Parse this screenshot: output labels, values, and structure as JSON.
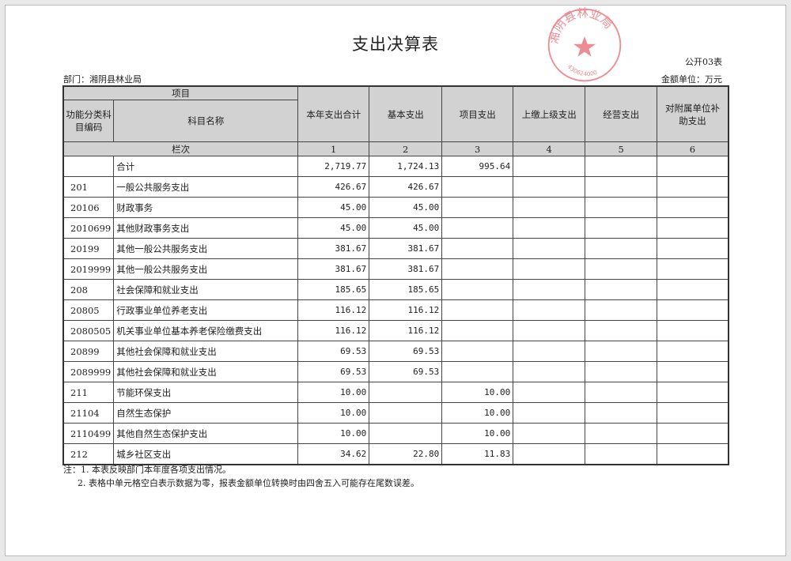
{
  "title": "支出决算表",
  "form_no": "公开03表",
  "department": "部门：湘阴县林业局",
  "unit": "金额单位：万元",
  "headers": {
    "item": "项目",
    "code": "功能分类科目编码",
    "name": "科目名称",
    "total": "本年支出合计",
    "basic": "基本支出",
    "project": "项目支出",
    "upper": "上缴上级支出",
    "business": "经营支出",
    "subsidy": "对附属单位补助支出",
    "col_index": "栏次",
    "col_nums": [
      "1",
      "2",
      "3",
      "4",
      "5",
      "6"
    ]
  },
  "rows": [
    {
      "code": "",
      "name": "合计",
      "total": "2,719.77",
      "basic": "1,724.13",
      "project": "995.64"
    },
    {
      "code": "201",
      "name": "一般公共服务支出",
      "total": "426.67",
      "basic": "426.67",
      "project": ""
    },
    {
      "code": "20106",
      "name": "财政事务",
      "total": "45.00",
      "basic": "45.00",
      "project": ""
    },
    {
      "code": "2010699",
      "name": "其他财政事务支出",
      "total": "45.00",
      "basic": "45.00",
      "project": ""
    },
    {
      "code": "20199",
      "name": "其他一般公共服务支出",
      "total": "381.67",
      "basic": "381.67",
      "project": ""
    },
    {
      "code": "2019999",
      "name": "其他一般公共服务支出",
      "total": "381.67",
      "basic": "381.67",
      "project": ""
    },
    {
      "code": "208",
      "name": "社会保障和就业支出",
      "total": "185.65",
      "basic": "185.65",
      "project": ""
    },
    {
      "code": "20805",
      "name": "行政事业单位养老支出",
      "total": "116.12",
      "basic": "116.12",
      "project": ""
    },
    {
      "code": "2080505",
      "name": "机关事业单位基本养老保险缴费支出",
      "total": "116.12",
      "basic": "116.12",
      "project": ""
    },
    {
      "code": "20899",
      "name": "其他社会保障和就业支出",
      "total": "69.53",
      "basic": "69.53",
      "project": ""
    },
    {
      "code": "2089999",
      "name": "其他社会保障和就业支出",
      "total": "69.53",
      "basic": "69.53",
      "project": ""
    },
    {
      "code": "211",
      "name": "节能环保支出",
      "total": "10.00",
      "basic": "",
      "project": "10.00"
    },
    {
      "code": "21104",
      "name": "自然生态保护",
      "total": "10.00",
      "basic": "",
      "project": "10.00"
    },
    {
      "code": "2110499",
      "name": "其他自然生态保护支出",
      "total": "10.00",
      "basic": "",
      "project": "10.00"
    },
    {
      "code": "212",
      "name": "城乡社区支出",
      "total": "34.62",
      "basic": "22.80",
      "project": "11.83"
    }
  ],
  "notes": [
    "注：1. 本表反映部门本年度各项支出情况。",
    "2. 表格中单元格空白表示数据为零，报表金额单位转换时由四舍五入可能存在尾数误差。"
  ],
  "stamp": {
    "text": "湘阴县林业局",
    "number": "430624000",
    "color": "#e0303a"
  }
}
